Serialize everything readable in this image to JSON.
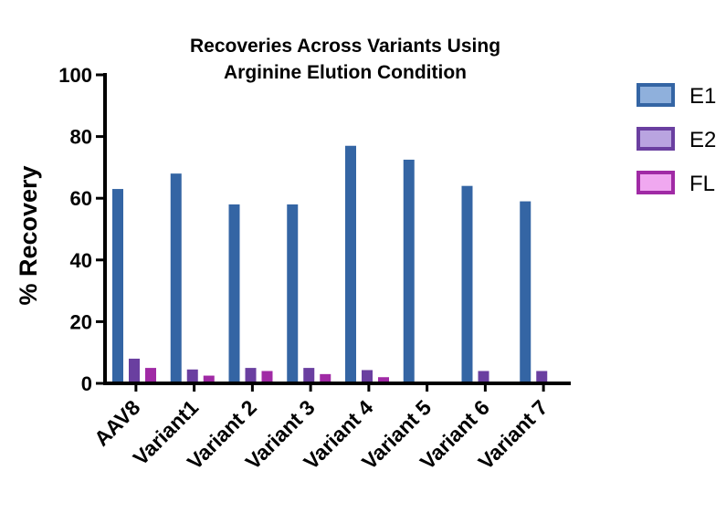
{
  "chart_data": {
    "type": "bar",
    "title_lines": [
      "Recoveries Across Variants Using",
      "Arginine Elution Condition"
    ],
    "ylabel": "% Recovery",
    "xlabel": "",
    "ylim": [
      0,
      100
    ],
    "yticks": [
      "0",
      "20",
      "40",
      "60",
      "80",
      "100"
    ],
    "categories": [
      "AAV8",
      "Variant1",
      "Variant 2",
      "Variant 3",
      "Variant 4",
      "Variant 5",
      "Variant 6",
      "Variant 7"
    ],
    "series": [
      {
        "name": "E1",
        "color": "#3465a4",
        "legend_fill": "#8fb0dc",
        "values": [
          63,
          68,
          58,
          58,
          77,
          72.5,
          64,
          59
        ]
      },
      {
        "name": "E2",
        "color": "#6a3fa0",
        "legend_fill": "#b9a4e0",
        "values": [
          8,
          4.5,
          5,
          5,
          4.3,
          null,
          4,
          4
        ]
      },
      {
        "name": "FL",
        "color": "#a02aa5",
        "legend_fill": "#f0a8f0",
        "values": [
          5,
          2.5,
          4,
          3,
          2,
          null,
          null,
          null
        ]
      }
    ],
    "legend_position": "right",
    "grid": false
  }
}
